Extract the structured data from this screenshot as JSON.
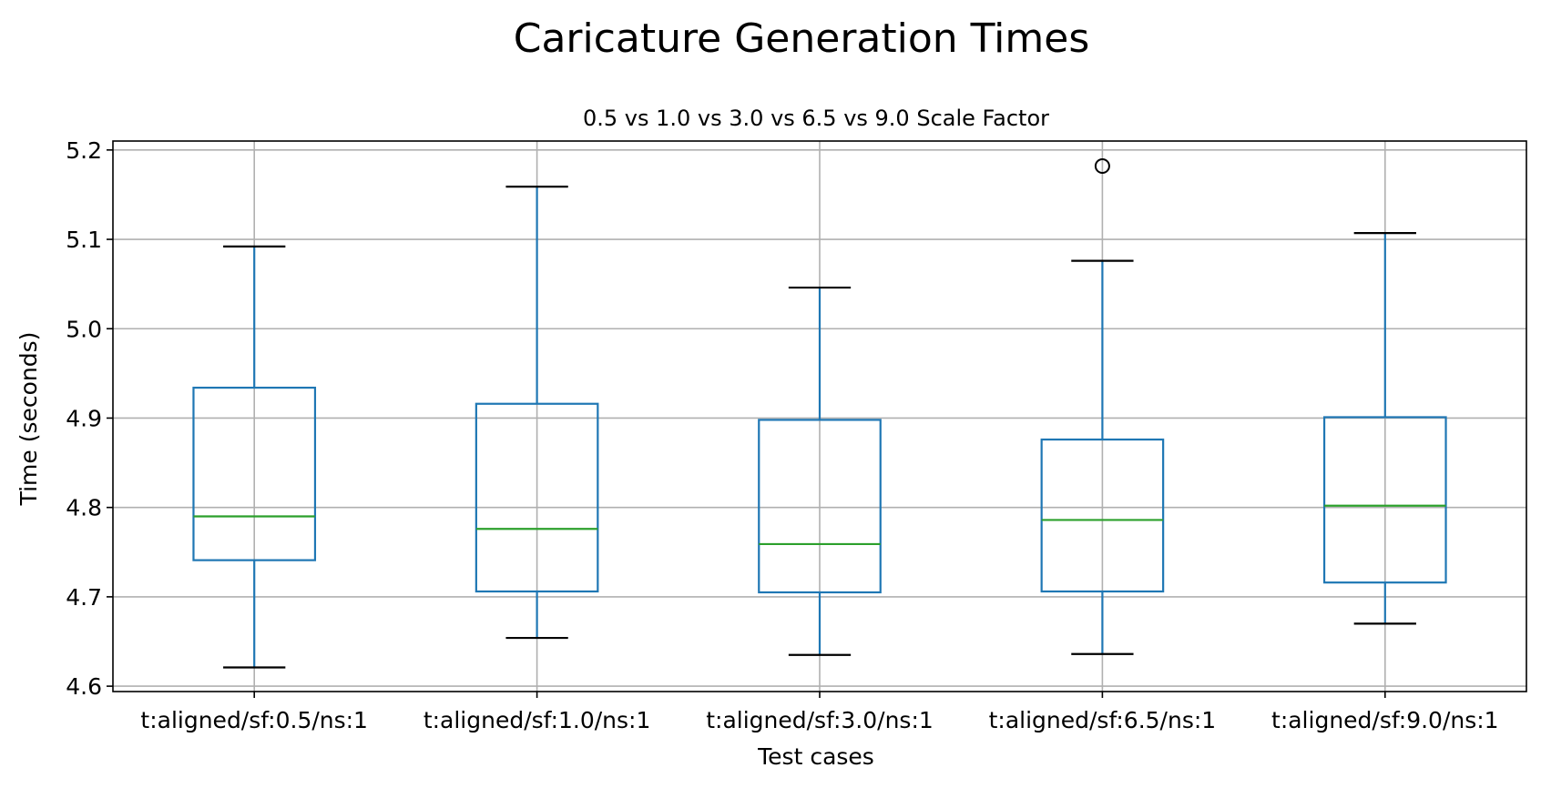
{
  "chart_data": {
    "type": "box",
    "suptitle": "Caricature Generation Times",
    "title": "0.5 vs 1.0 vs 3.0 vs 6.5 vs 9.0 Scale Factor",
    "xlabel": "Test cases",
    "ylabel": "Time (seconds)",
    "ylim": [
      4.594,
      5.21
    ],
    "yticks": [
      4.6,
      4.7,
      4.8,
      4.9,
      5.0,
      5.1,
      5.2
    ],
    "ytick_labels": [
      "4.6",
      "4.7",
      "4.8",
      "4.9",
      "5.0",
      "5.1",
      "5.2"
    ],
    "grid": true,
    "categories": [
      "t:aligned/sf:0.5/ns:1",
      "t:aligned/sf:1.0/ns:1",
      "t:aligned/sf:3.0/ns:1",
      "t:aligned/sf:6.5/ns:1",
      "t:aligned/sf:9.0/ns:1"
    ],
    "boxes": [
      {
        "whisker_low": 4.621,
        "q1": 4.741,
        "median": 4.79,
        "q3": 4.934,
        "whisker_high": 5.092,
        "outliers": []
      },
      {
        "whisker_low": 4.654,
        "q1": 4.706,
        "median": 4.776,
        "q3": 4.916,
        "whisker_high": 5.159,
        "outliers": []
      },
      {
        "whisker_low": 4.635,
        "q1": 4.705,
        "median": 4.759,
        "q3": 4.898,
        "whisker_high": 5.046,
        "outliers": []
      },
      {
        "whisker_low": 4.636,
        "q1": 4.706,
        "median": 4.786,
        "q3": 4.876,
        "whisker_high": 5.076,
        "outliers": [
          5.182
        ]
      },
      {
        "whisker_low": 4.67,
        "q1": 4.716,
        "median": 4.802,
        "q3": 4.901,
        "whisker_high": 5.107,
        "outliers": []
      }
    ],
    "colors": {
      "box": "#1f77b4",
      "median": "#2ca02c",
      "whisker_cap": "#000000",
      "grid": "#b0b0b0",
      "flier": "#000000"
    }
  }
}
